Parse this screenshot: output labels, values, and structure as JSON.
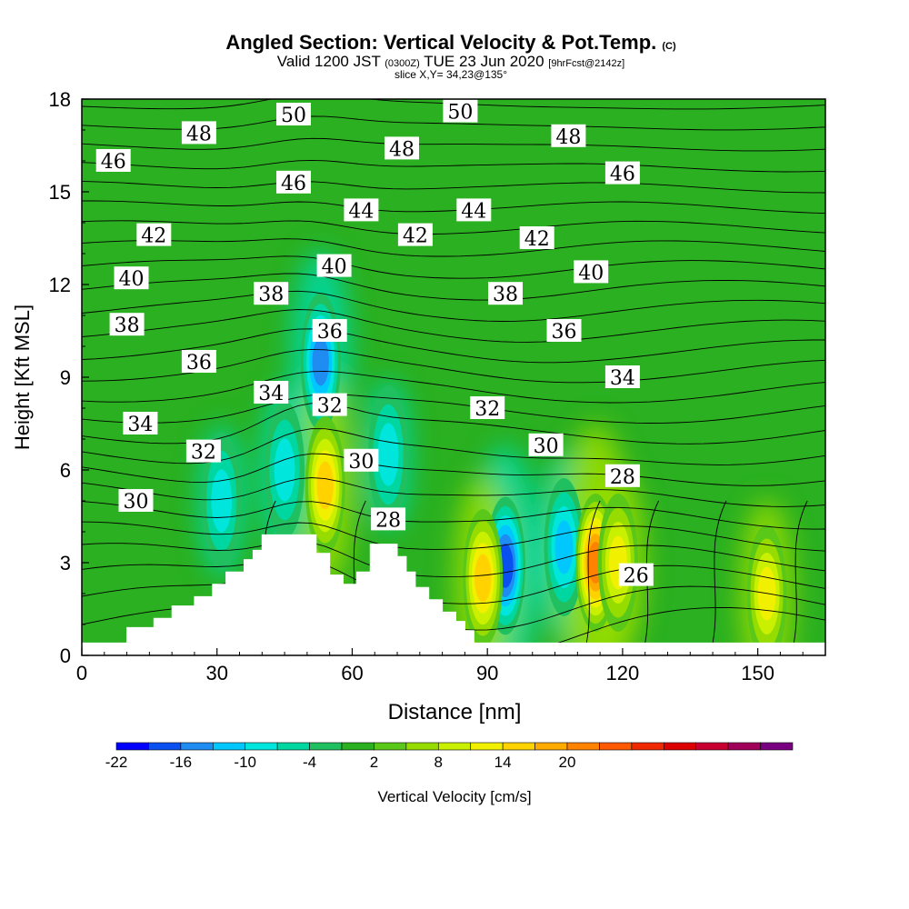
{
  "header": {
    "title": "Angled Section: Vertical Velocity & Pot.Temp.",
    "title_units": "(C)",
    "valid_prefix": "Valid 1200 JST",
    "valid_utc": "(0300Z)",
    "valid_date": "TUE 23 Jun 2020",
    "forecast": "[9hrFcst@2142z]",
    "slice": "slice X,Y= 34,23@135°"
  },
  "chart_data": {
    "type": "heatmap",
    "title": "Angled Section: Vertical Velocity & Pot.Temp.",
    "xlabel": "Distance [nm]",
    "ylabel": "Height [Kft MSL]",
    "xlim": [
      0,
      165
    ],
    "ylim": [
      0,
      18
    ],
    "x_ticks": [
      "0",
      "30",
      "60",
      "90",
      "120",
      "150"
    ],
    "y_ticks": [
      "0",
      "3",
      "6",
      "9",
      "12",
      "15",
      "18"
    ],
    "colorbar": {
      "label": "Vertical Velocity [cm/s]",
      "tick_labels": [
        "-22",
        "-16",
        "-10",
        "-4",
        "2",
        "8",
        "14",
        "20"
      ],
      "colors": [
        "#0000ff",
        "#0a50f0",
        "#1e8cf0",
        "#00c8ff",
        "#00e6dc",
        "#00d7a0",
        "#20c060",
        "#2ab020",
        "#5ac818",
        "#96dc00",
        "#c8f000",
        "#f0f000",
        "#ffd200",
        "#ffaa00",
        "#ff8200",
        "#ff5a00",
        "#f02800",
        "#dc0000",
        "#c80032",
        "#a0005a",
        "#780080"
      ]
    },
    "vertical_velocity_cores_cm_s": [
      {
        "x": 53,
        "z": 9.5,
        "w": -16
      },
      {
        "x": 54,
        "z": 5.5,
        "w": 14
      },
      {
        "x": 45,
        "z": 6.0,
        "w": -10
      },
      {
        "x": 31,
        "z": 5.0,
        "w": -8
      },
      {
        "x": 94,
        "z": 2.9,
        "w": -18
      },
      {
        "x": 107,
        "z": 3.5,
        "w": -12
      },
      {
        "x": 114,
        "z": 3.0,
        "w": 22
      },
      {
        "x": 89,
        "z": 2.5,
        "w": 14
      },
      {
        "x": 119,
        "z": 3.0,
        "w": 12
      },
      {
        "x": 152,
        "z": 2.0,
        "w": 12
      },
      {
        "x": 68,
        "z": 6.5,
        "w": -8
      }
    ],
    "potential_temperature_contour_labels": [
      {
        "value": "46",
        "x": 7,
        "z": 16.0
      },
      {
        "value": "48",
        "x": 26,
        "z": 16.9
      },
      {
        "value": "50",
        "x": 47,
        "z": 17.5
      },
      {
        "value": "46",
        "x": 47,
        "z": 15.3
      },
      {
        "value": "48",
        "x": 71,
        "z": 16.4
      },
      {
        "value": "44",
        "x": 62,
        "z": 14.4
      },
      {
        "value": "50",
        "x": 84,
        "z": 17.6
      },
      {
        "value": "48",
        "x": 108,
        "z": 16.8
      },
      {
        "value": "46",
        "x": 120,
        "z": 15.6
      },
      {
        "value": "44",
        "x": 87,
        "z": 14.4
      },
      {
        "value": "42",
        "x": 16,
        "z": 13.6
      },
      {
        "value": "42",
        "x": 74,
        "z": 13.6
      },
      {
        "value": "42",
        "x": 101,
        "z": 13.5
      },
      {
        "value": "40",
        "x": 11,
        "z": 12.2
      },
      {
        "value": "40",
        "x": 56,
        "z": 12.6
      },
      {
        "value": "40",
        "x": 113,
        "z": 12.4
      },
      {
        "value": "38",
        "x": 42,
        "z": 11.7
      },
      {
        "value": "38",
        "x": 94,
        "z": 11.7
      },
      {
        "value": "38",
        "x": 10,
        "z": 10.7
      },
      {
        "value": "36",
        "x": 55,
        "z": 10.5
      },
      {
        "value": "36",
        "x": 107,
        "z": 10.5
      },
      {
        "value": "36",
        "x": 26,
        "z": 9.5
      },
      {
        "value": "34",
        "x": 42,
        "z": 8.5
      },
      {
        "value": "34",
        "x": 120,
        "z": 9.0
      },
      {
        "value": "34",
        "x": 13,
        "z": 7.5
      },
      {
        "value": "32",
        "x": 55,
        "z": 8.1
      },
      {
        "value": "32",
        "x": 90,
        "z": 8.0
      },
      {
        "value": "32",
        "x": 27,
        "z": 6.6
      },
      {
        "value": "30",
        "x": 103,
        "z": 6.8
      },
      {
        "value": "30",
        "x": 62,
        "z": 6.3
      },
      {
        "value": "30",
        "x": 12,
        "z": 5.0
      },
      {
        "value": "28",
        "x": 120,
        "z": 5.8
      },
      {
        "value": "28",
        "x": 68,
        "z": 4.4
      },
      {
        "value": "26",
        "x": 123,
        "z": 2.6
      }
    ],
    "terrain_x_z": [
      [
        0,
        0.4
      ],
      [
        10,
        0.4
      ],
      [
        10,
        0.9
      ],
      [
        16,
        0.9
      ],
      [
        16,
        1.2
      ],
      [
        20,
        1.2
      ],
      [
        20,
        1.6
      ],
      [
        25,
        1.6
      ],
      [
        25,
        1.9
      ],
      [
        29,
        1.9
      ],
      [
        29,
        2.3
      ],
      [
        32,
        2.3
      ],
      [
        32,
        2.7
      ],
      [
        36,
        2.7
      ],
      [
        36,
        3.1
      ],
      [
        38,
        3.1
      ],
      [
        38,
        3.4
      ],
      [
        40,
        3.4
      ],
      [
        40,
        3.9
      ],
      [
        52,
        3.9
      ],
      [
        52,
        3.3
      ],
      [
        55,
        3.3
      ],
      [
        55,
        2.6
      ],
      [
        58,
        2.6
      ],
      [
        58,
        2.3
      ],
      [
        61,
        2.3
      ],
      [
        61,
        2.7
      ],
      [
        64,
        2.7
      ],
      [
        64,
        3.6
      ],
      [
        70,
        3.6
      ],
      [
        70,
        3.2
      ],
      [
        72,
        3.2
      ],
      [
        72,
        2.7
      ],
      [
        74,
        2.7
      ],
      [
        74,
        2.2
      ],
      [
        77,
        2.2
      ],
      [
        77,
        1.8
      ],
      [
        80,
        1.8
      ],
      [
        80,
        1.4
      ],
      [
        83,
        1.4
      ],
      [
        83,
        1.1
      ],
      [
        85,
        1.1
      ],
      [
        85,
        0.8
      ],
      [
        87,
        0.8
      ],
      [
        87,
        0.4
      ],
      [
        165,
        0.4
      ]
    ]
  }
}
